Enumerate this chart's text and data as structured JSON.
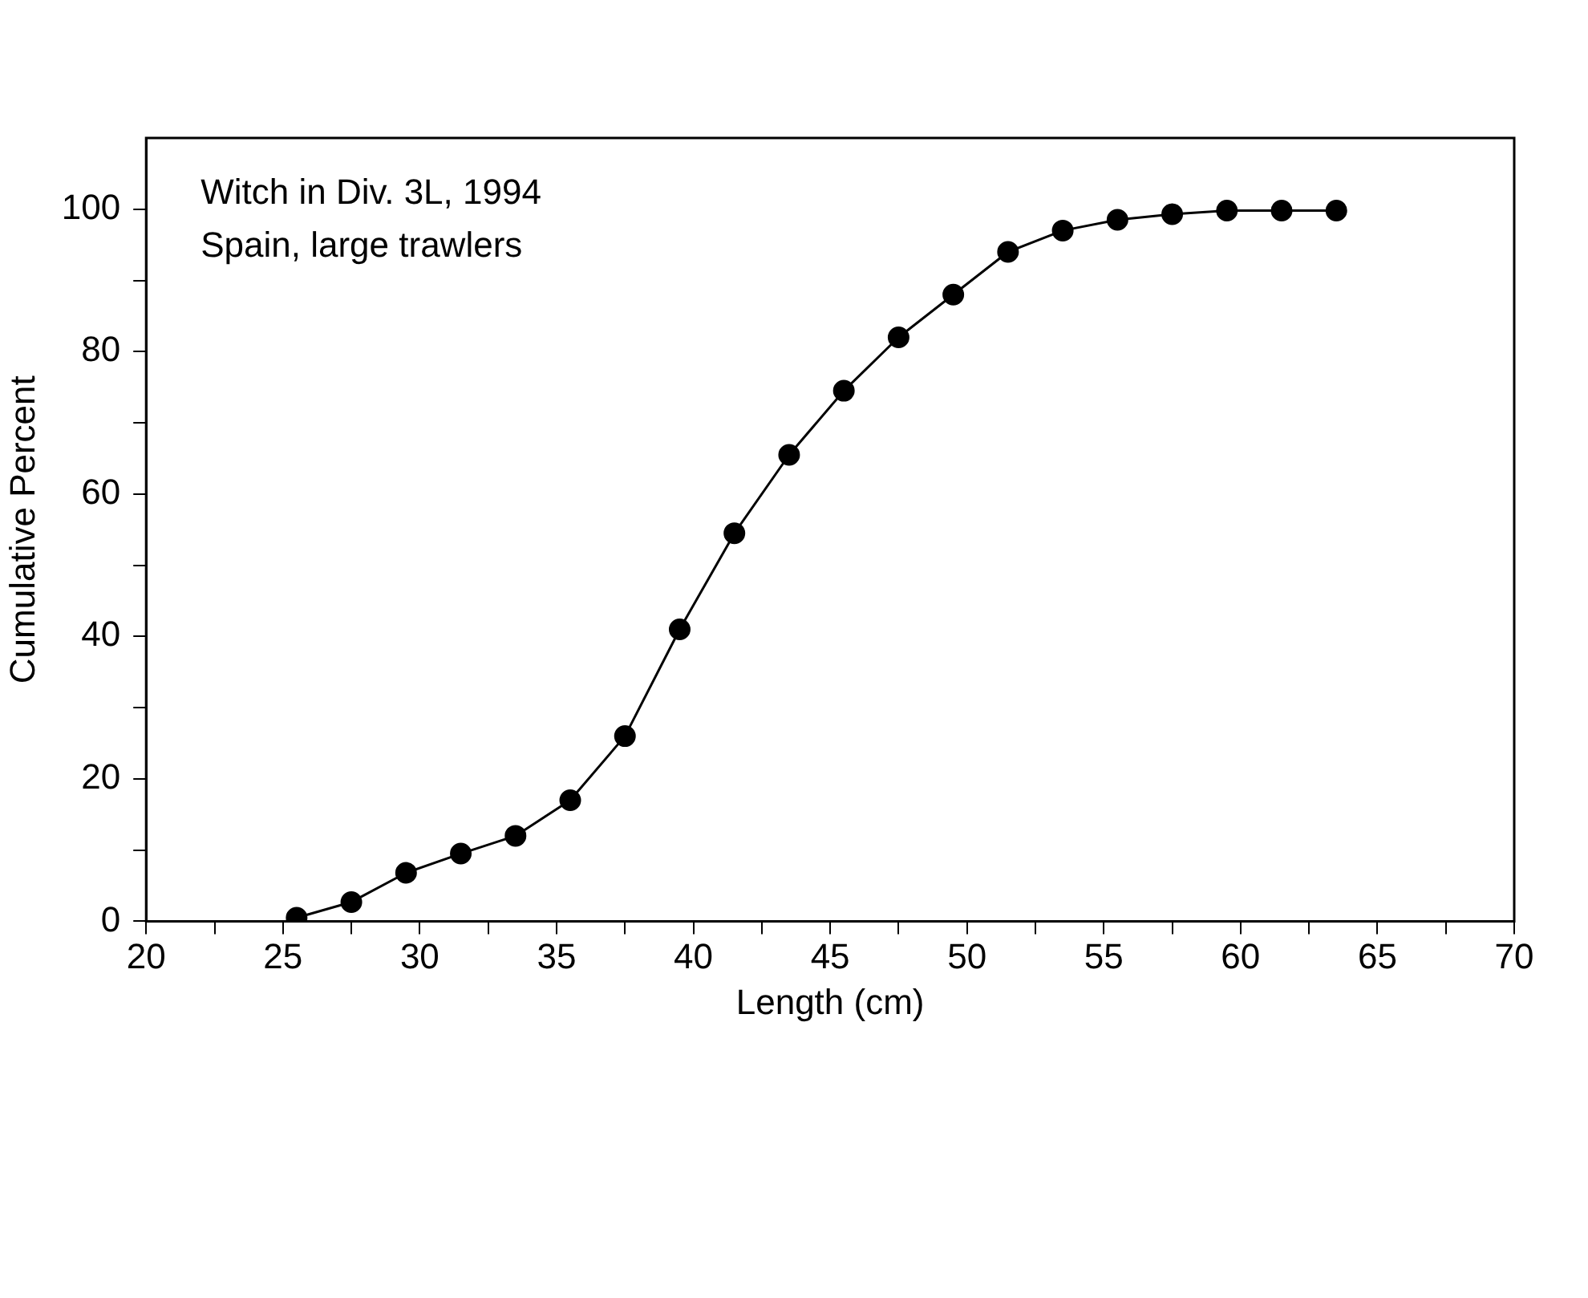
{
  "chart_data": {
    "type": "line",
    "xlabel": "Length (cm)",
    "ylabel": "Cumulative Percent",
    "annotations": [
      "Witch in Div. 3L, 1994",
      "Spain, large trawlers"
    ],
    "x": [
      25.5,
      27.5,
      29.5,
      31.5,
      33.5,
      35.5,
      37.5,
      39.5,
      41.5,
      43.5,
      45.5,
      47.5,
      49.5,
      51.5,
      53.5,
      55.5,
      57.5,
      59.5,
      61.5,
      63.5
    ],
    "series": [
      {
        "color": "#000000",
        "values": [
          0.5,
          2.7,
          6.8,
          9.5,
          12,
          17,
          26,
          41,
          54.5,
          65.5,
          74.5,
          82,
          88,
          94,
          97,
          98.5,
          99.3,
          99.8,
          99.8,
          99.8
        ]
      }
    ],
    "xlim": [
      20,
      70
    ],
    "xticks": [
      20,
      {
        "value": 22.5,
        "label": null
      },
      25,
      {
        "value": 27.5,
        "label": null
      },
      30,
      {
        "value": 32.5,
        "label": null
      },
      35,
      {
        "value": 37.5,
        "label": null
      },
      40,
      {
        "value": 42.5,
        "label": null
      },
      45,
      {
        "value": 47.5,
        "label": null
      },
      50,
      {
        "value": 52.5,
        "label": null
      },
      55,
      {
        "value": 57.5,
        "label": null
      },
      60,
      {
        "value": 62.5,
        "label": null
      },
      65,
      {
        "value": 67.5,
        "label": null
      },
      70
    ],
    "ylim": [
      0,
      110
    ],
    "yticks": [
      0,
      {
        "value": 10,
        "label": null
      },
      20,
      {
        "value": 30,
        "label": null
      },
      40,
      {
        "value": 50,
        "label": null
      },
      60,
      {
        "value": 70,
        "label": null
      },
      80,
      {
        "value": 90,
        "label": null
      },
      100
    ],
    "grid": false,
    "legend": false,
    "marker": "circle",
    "line_style": "solid"
  }
}
